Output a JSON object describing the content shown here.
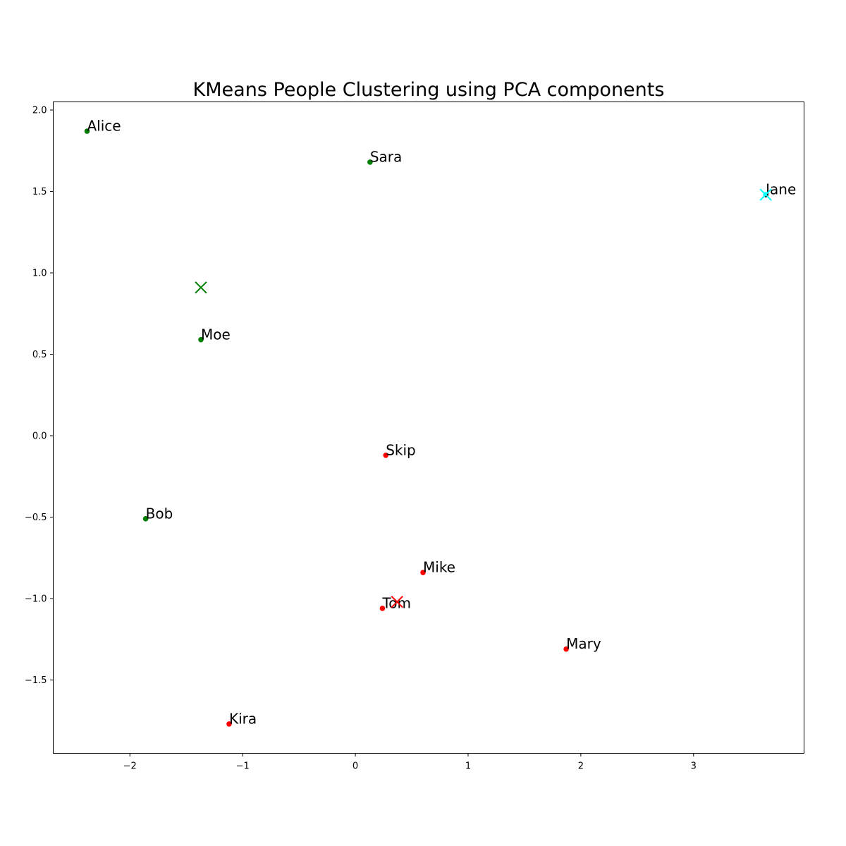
{
  "chart_data": {
    "type": "scatter",
    "title": "KMeans People Clustering using PCA components",
    "xlabel": "",
    "ylabel": "",
    "xlim": [
      -2.68,
      3.98
    ],
    "ylim": [
      -1.95,
      2.05
    ],
    "grid": false,
    "legend": "none",
    "xticks": [
      -2,
      -1,
      0,
      1,
      2,
      3
    ],
    "xtick_labels": [
      "−2",
      "−1",
      "0",
      "1",
      "2",
      "3"
    ],
    "yticks": [
      -1.5,
      -1.0,
      -0.5,
      0.0,
      0.5,
      1.0,
      1.5,
      2.0
    ],
    "ytick_labels": [
      "−1.5",
      "−1.0",
      "−0.5",
      "0.0",
      "0.5",
      "1.0",
      "1.5",
      "2.0"
    ],
    "cluster_colors": [
      "#008000",
      "#ff0000",
      "#00ffff"
    ],
    "points": [
      {
        "label": "Alice",
        "x": -2.38,
        "y": 1.87,
        "cluster": 0
      },
      {
        "label": "Sara",
        "x": 0.13,
        "y": 1.68,
        "cluster": 0
      },
      {
        "label": "Jane",
        "x": 3.64,
        "y": 1.48,
        "cluster": 2
      },
      {
        "label": "Moe",
        "x": -1.37,
        "y": 0.59,
        "cluster": 0
      },
      {
        "label": "Skip",
        "x": 0.27,
        "y": -0.12,
        "cluster": 1
      },
      {
        "label": "Bob",
        "x": -1.86,
        "y": -0.51,
        "cluster": 0
      },
      {
        "label": "Mike",
        "x": 0.6,
        "y": -0.84,
        "cluster": 1
      },
      {
        "label": "Tom",
        "x": 0.24,
        "y": -1.06,
        "cluster": 1
      },
      {
        "label": "Mary",
        "x": 1.87,
        "y": -1.31,
        "cluster": 1
      },
      {
        "label": "Kira",
        "x": -1.12,
        "y": -1.77,
        "cluster": 1
      }
    ],
    "centroids": [
      {
        "x": -1.37,
        "y": 0.91,
        "cluster": 0
      },
      {
        "x": 0.37,
        "y": -1.02,
        "cluster": 1
      },
      {
        "x": 3.64,
        "y": 1.48,
        "cluster": 2
      }
    ]
  }
}
